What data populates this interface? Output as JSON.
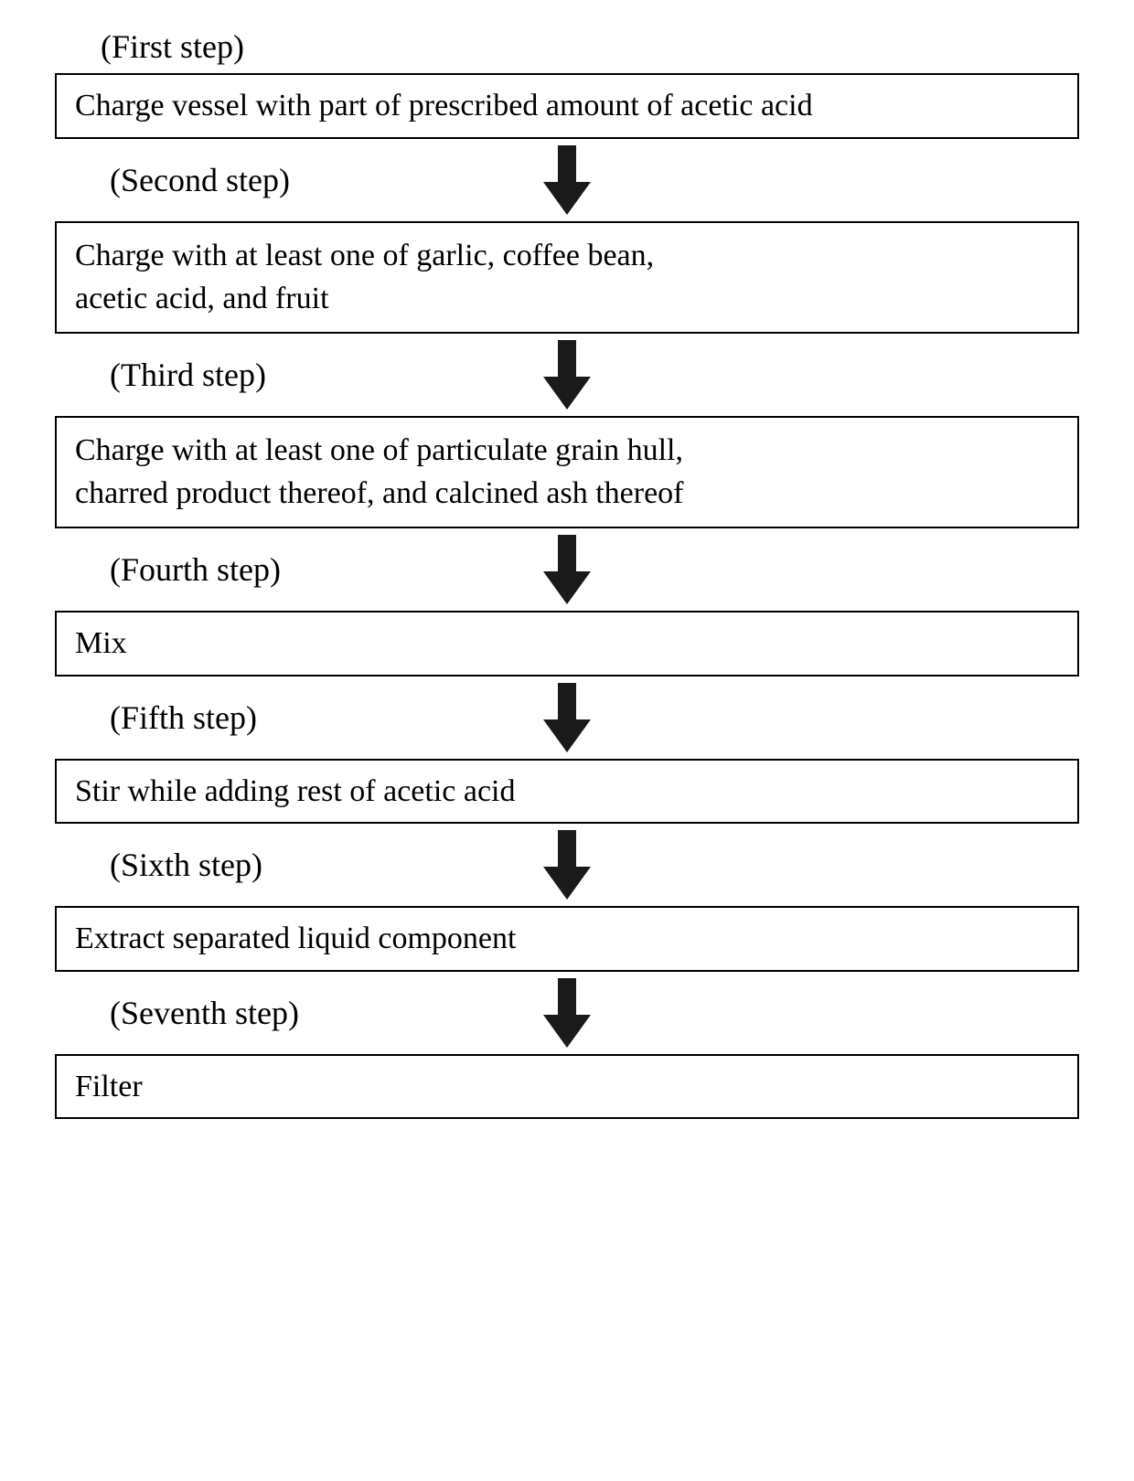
{
  "flowchart": {
    "type": "flowchart",
    "background_color": "#ffffff",
    "border_color": "#000000",
    "border_width": 2,
    "text_color": "#000000",
    "arrow_color": "#1a1a1a",
    "label_fontsize": 36,
    "box_fontsize": 34,
    "font_family": "Times New Roman",
    "steps": [
      {
        "label": "(First step)",
        "text": "Charge vessel with part of prescribed amount of acetic acid",
        "lines": 1
      },
      {
        "label": "(Second step)",
        "text": "Charge with at least one of garlic, coffee bean,\nacetic acid, and fruit",
        "lines": 2
      },
      {
        "label": "(Third step)",
        "text": "Charge with at least one of particulate grain hull,\ncharred product thereof, and calcined ash thereof",
        "lines": 2
      },
      {
        "label": "(Fourth step)",
        "text": "Mix",
        "lines": 1
      },
      {
        "label": "(Fifth step)",
        "text": "Stir while adding rest of acetic acid",
        "lines": 1
      },
      {
        "label": "(Sixth step)",
        "text": "Extract separated liquid component",
        "lines": 1
      },
      {
        "label": "(Seventh step)",
        "text": "Filter",
        "lines": 1
      }
    ]
  }
}
